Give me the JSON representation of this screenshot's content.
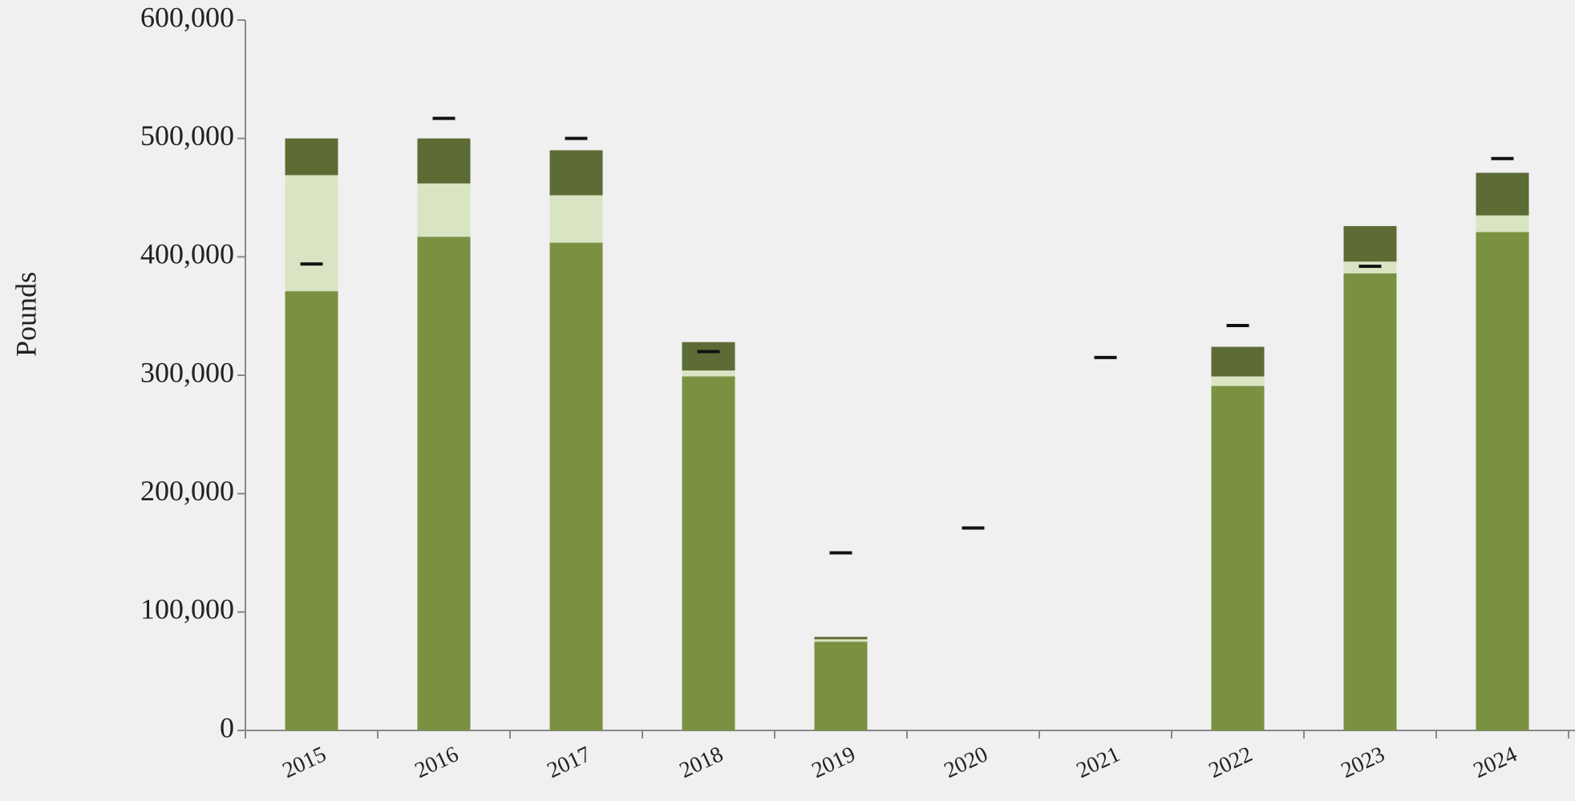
{
  "chart_data": {
    "type": "bar",
    "stacked": true,
    "y_label": "Pounds",
    "categories": [
      "2015",
      "2016",
      "2017",
      "2018",
      "2019",
      "2020",
      "2021",
      "2022",
      "2023",
      "2024"
    ],
    "series": [
      {
        "color": "#7a9142",
        "values": [
          371000,
          417000,
          412000,
          299000,
          75000,
          0,
          0,
          291000,
          386000,
          421000
        ]
      },
      {
        "color": "#d9e4c3",
        "values": [
          98000,
          45000,
          40000,
          5000,
          2000,
          0,
          0,
          8000,
          10000,
          14000
        ]
      },
      {
        "color": "#5d6b35",
        "values": [
          31000,
          38000,
          38000,
          24000,
          2000,
          0,
          0,
          25000,
          30000,
          36000
        ]
      }
    ],
    "markers": {
      "color": "#111111",
      "values": [
        394000,
        517000,
        500000,
        320000,
        150000,
        171000,
        315000,
        342000,
        392000,
        483000
      ]
    },
    "ylim": [
      0,
      600000
    ],
    "yticks": [
      0,
      {
        "value": 100000,
        "label": "100,000"
      },
      {
        "value": 200000,
        "label": "200,000"
      },
      {
        "value": 300000,
        "label": "300,000"
      },
      {
        "value": 400000,
        "label": "400,000"
      },
      {
        "value": 500000,
        "label": "500,000"
      },
      {
        "value": 600000,
        "label": "600,000"
      }
    ]
  }
}
